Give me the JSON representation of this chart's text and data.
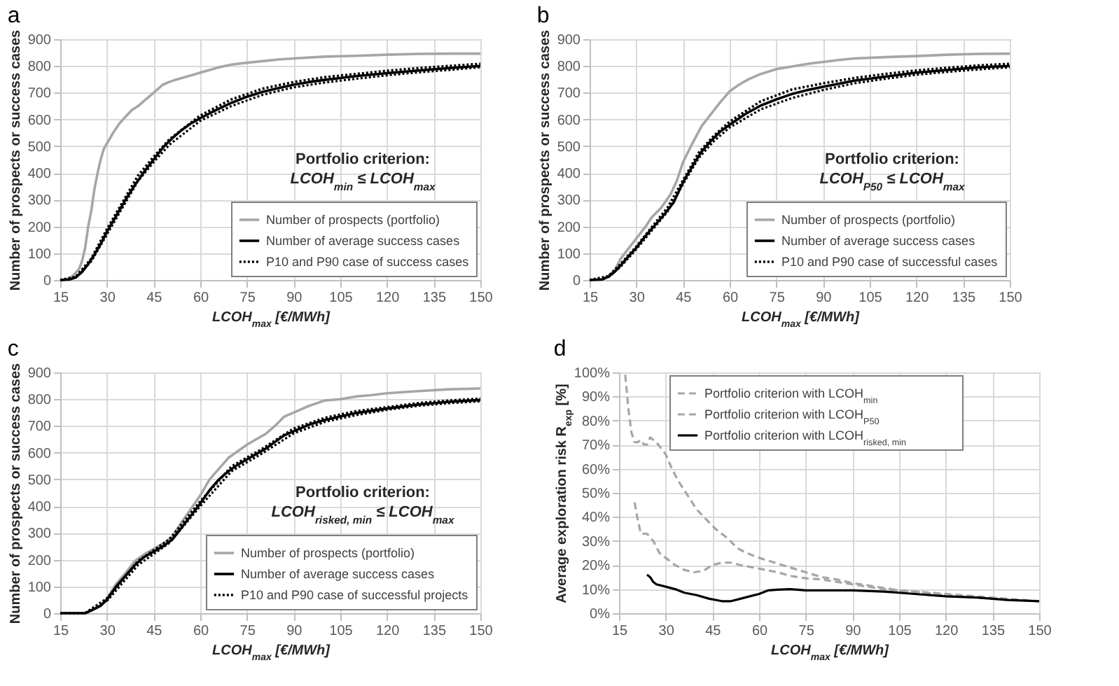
{
  "chart_data": [
    {
      "type": "line",
      "title": "a",
      "xlabel": "LCOH$_{max}$ [€/MWh]",
      "ylabel": "Number of prospects or success cases",
      "annotations": [
        "Portfolio criterion:",
        "LCOH$_{min}$ ≤ LCOH$_{max}$"
      ],
      "xlim": [
        15,
        150
      ],
      "xticks": [
        15,
        30,
        45,
        60,
        75,
        90,
        105,
        120,
        135,
        150
      ],
      "ylim": [
        0,
        900
      ],
      "yticks": [
        0,
        100,
        200,
        300,
        400,
        500,
        600,
        700,
        800,
        900
      ],
      "grid": true,
      "legend": "bottom right",
      "series": [
        {
          "name": "Number of prospects (portfolio)",
          "color": "#a6a6a6",
          "line_style": "solid",
          "x": [
            15,
            17,
            19,
            21,
            22,
            23,
            24,
            25,
            26,
            27,
            28,
            29,
            30,
            32,
            34,
            36,
            38,
            40,
            42,
            44,
            46,
            48,
            50,
            52,
            55,
            58,
            60,
            63,
            66,
            70,
            75,
            80,
            85,
            90,
            100,
            110,
            120,
            130,
            140,
            150
          ],
          "values": [
            0,
            2,
            15,
            40,
            70,
            120,
            200,
            260,
            340,
            400,
            450,
            490,
            510,
            550,
            585,
            610,
            635,
            650,
            670,
            690,
            710,
            730,
            740,
            748,
            758,
            768,
            775,
            785,
            795,
            805,
            812,
            818,
            824,
            828,
            835,
            838,
            842,
            845,
            846,
            846
          ]
        },
        {
          "name": "Number of average success cases",
          "color": "#000000",
          "line_style": "solid",
          "x": [
            15,
            18,
            20,
            22,
            24,
            26,
            28,
            30,
            33,
            36,
            39,
            42,
            45,
            48,
            51,
            54,
            57,
            60,
            65,
            70,
            75,
            80,
            85,
            90,
            95,
            100,
            105,
            110,
            120,
            130,
            140,
            150
          ],
          "values": [
            0,
            2,
            10,
            30,
            60,
            95,
            135,
            180,
            240,
            300,
            355,
            405,
            450,
            495,
            530,
            560,
            585,
            605,
            635,
            662,
            685,
            703,
            717,
            730,
            740,
            748,
            755,
            762,
            773,
            783,
            792,
            800
          ]
        },
        {
          "name": "P10 and P90 case of success cases",
          "color": "#000000",
          "line_style": "dotted",
          "x": [
            15,
            20,
            25,
            30,
            40,
            45,
            50,
            60,
            70,
            80,
            90,
            100,
            110,
            120,
            130,
            140,
            150
          ],
          "values": [
            0,
            12,
            80,
            190,
            390,
            460,
            525,
            615,
            675,
            715,
            740,
            758,
            770,
            782,
            792,
            800,
            808
          ]
        },
        {
          "color": "#000000",
          "line_style": "dotted",
          "x": [
            20,
            25,
            30,
            40,
            45,
            50,
            60,
            70,
            80,
            90,
            100,
            110,
            120,
            130,
            140,
            150
          ],
          "values": [
            8,
            70,
            170,
            370,
            440,
            505,
            595,
            650,
            692,
            720,
            738,
            752,
            765,
            776,
            785,
            795
          ]
        }
      ]
    },
    {
      "type": "line",
      "title": "b",
      "xlabel": "LCOH$_{max}$ [€/MWh]",
      "ylabel": "Number of prospects or success cases",
      "annotations": [
        "Portfolio criterion:",
        "LCOH$_{P50}$ ≤ LCOH$_{max}$"
      ],
      "xlim": [
        15,
        150
      ],
      "xticks": [
        15,
        30,
        45,
        60,
        75,
        90,
        105,
        120,
        135,
        150
      ],
      "ylim": [
        0,
        900
      ],
      "yticks": [
        0,
        100,
        200,
        300,
        400,
        500,
        600,
        700,
        800,
        900
      ],
      "grid": true,
      "legend": "bottom right",
      "series": [
        {
          "name": "Number of prospects (portfolio)",
          "color": "#a6a6a6",
          "line_style": "solid",
          "x": [
            15,
            19,
            21,
            23,
            25,
            27,
            30,
            33,
            35,
            38,
            41,
            43,
            45,
            48,
            51,
            54,
            57,
            60,
            63,
            66,
            70,
            75,
            80,
            85,
            90,
            95,
            100,
            110,
            120,
            130,
            140,
            150
          ],
          "values": [
            0,
            2,
            15,
            35,
            80,
            110,
            155,
            200,
            235,
            270,
            320,
            370,
            440,
            510,
            575,
            620,
            665,
            705,
            730,
            750,
            770,
            788,
            798,
            808,
            815,
            822,
            828,
            833,
            837,
            842,
            845,
            846
          ]
        },
        {
          "name": "Number of average success cases",
          "color": "#000000",
          "line_style": "solid",
          "x": [
            15,
            19,
            21,
            23,
            25,
            28,
            30,
            33,
            36,
            39,
            42,
            45,
            48,
            51,
            54,
            57,
            60,
            65,
            70,
            75,
            80,
            85,
            90,
            95,
            100,
            110,
            120,
            130,
            140,
            150
          ],
          "values": [
            0,
            2,
            12,
            30,
            55,
            95,
            120,
            165,
            205,
            245,
            290,
            365,
            425,
            480,
            520,
            555,
            580,
            620,
            652,
            675,
            695,
            710,
            722,
            733,
            745,
            760,
            775,
            785,
            795,
            800
          ]
        },
        {
          "name": "P10 and P90 case of successful cases",
          "color": "#000000",
          "line_style": "dotted",
          "x": [
            15,
            21,
            25,
            30,
            40,
            45,
            50,
            55,
            60,
            70,
            80,
            90,
            100,
            110,
            120,
            130,
            140,
            150
          ],
          "values": [
            0,
            14,
            60,
            125,
            270,
            372,
            475,
            540,
            592,
            668,
            712,
            735,
            755,
            770,
            783,
            793,
            802,
            808
          ]
        },
        {
          "color": "#000000",
          "line_style": "dotted",
          "x": [
            21,
            25,
            30,
            40,
            45,
            50,
            55,
            60,
            70,
            80,
            90,
            100,
            110,
            120,
            130,
            140,
            150
          ],
          "values": [
            10,
            50,
            115,
            255,
            358,
            455,
            520,
            570,
            638,
            680,
            710,
            735,
            752,
            767,
            778,
            787,
            795
          ]
        }
      ]
    },
    {
      "type": "line",
      "title": "c",
      "xlabel": "LCOH$_{max}$ [€/MWh]",
      "ylabel": "Number of prospects or success cases",
      "annotations": [
        "Portfolio criterion:",
        "LCOH$_{risked, min}$ ≤ LCOH$_{max}$"
      ],
      "xlim": [
        15,
        150
      ],
      "xticks": [
        15,
        30,
        45,
        60,
        75,
        90,
        105,
        120,
        135,
        150
      ],
      "ylim": [
        0,
        900
      ],
      "yticks": [
        0,
        100,
        200,
        300,
        400,
        500,
        600,
        700,
        800,
        900
      ],
      "grid": true,
      "legend": "bottom right",
      "series": [
        {
          "name": "Number of prospects (portfolio)",
          "color": "#a6a6a6",
          "line_style": "solid",
          "x": [
            15,
            23,
            25,
            28,
            30,
            33,
            36,
            39,
            42,
            45,
            48,
            51,
            54,
            57,
            60,
            63,
            66,
            69,
            72,
            75,
            78,
            81,
            84,
            87,
            90,
            95,
            100,
            105,
            110,
            115,
            120,
            130,
            140,
            150
          ],
          "values": [
            0,
            0,
            12,
            30,
            55,
            110,
            150,
            195,
            220,
            240,
            260,
            285,
            340,
            390,
            440,
            500,
            540,
            580,
            605,
            630,
            650,
            670,
            700,
            735,
            750,
            775,
            795,
            800,
            810,
            815,
            822,
            830,
            837,
            840
          ]
        },
        {
          "name": "Number of average success cases",
          "color": "#000000",
          "line_style": "solid",
          "x": [
            15,
            23,
            25,
            28,
            30,
            33,
            36,
            39,
            42,
            45,
            48,
            51,
            54,
            57,
            60,
            63,
            66,
            69,
            72,
            75,
            78,
            81,
            84,
            87,
            90,
            95,
            100,
            105,
            110,
            120,
            130,
            140,
            150
          ],
          "values": [
            0,
            0,
            10,
            28,
            50,
            100,
            140,
            180,
            210,
            230,
            250,
            275,
            320,
            365,
            410,
            460,
            500,
            530,
            555,
            575,
            595,
            615,
            640,
            665,
            680,
            705,
            722,
            735,
            748,
            765,
            780,
            790,
            797
          ]
        },
        {
          "name": "P10 and P90 case of successful projects",
          "color": "#000000",
          "line_style": "dotted",
          "x": [
            15,
            23,
            30,
            40,
            50,
            60,
            70,
            80,
            90,
            100,
            110,
            120,
            130,
            140,
            150
          ],
          "values": [
            0,
            0,
            55,
            195,
            275,
            418,
            548,
            615,
            690,
            730,
            755,
            770,
            785,
            795,
            802
          ]
        },
        {
          "color": "#000000",
          "line_style": "dotted",
          "x": [
            30,
            40,
            50,
            60,
            70,
            80,
            90,
            100,
            110,
            120,
            130,
            140,
            150
          ],
          "values": [
            45,
            180,
            262,
            400,
            530,
            598,
            672,
            715,
            740,
            760,
            775,
            785,
            792
          ]
        }
      ]
    },
    {
      "type": "line",
      "title": "d",
      "xlabel": "LCOH$_{max}$ [€/MWh]",
      "ylabel": "Average exploration risk R$_{exp}$ [%]",
      "xlim": [
        15,
        150
      ],
      "xticks": [
        15,
        30,
        45,
        60,
        75,
        90,
        105,
        120,
        135,
        150
      ],
      "ylim": [
        0,
        100
      ],
      "yticks": [
        {
          "value": 0,
          "label": "0%"
        },
        {
          "value": 10,
          "label": "10%"
        },
        {
          "value": 20,
          "label": "20%"
        },
        {
          "value": 30,
          "label": "30%"
        },
        {
          "value": 40,
          "label": "40%"
        },
        {
          "value": 50,
          "label": "50%"
        },
        {
          "value": 60,
          "label": "60%"
        },
        {
          "value": 70,
          "label": "70%"
        },
        {
          "value": 80,
          "label": "80%"
        },
        {
          "value": 90,
          "label": "90%"
        },
        {
          "value": 100,
          "label": "100%"
        }
      ],
      "grid": true,
      "legend": "top left",
      "series": [
        {
          "name": "Portfolio criterion with LCOH$_{min}$",
          "color": "#a6a6a6",
          "line_style": "dashed",
          "x": [
            17,
            18,
            19,
            20,
            21,
            22,
            23,
            24,
            25,
            27,
            30,
            32,
            34,
            37,
            40,
            43,
            46,
            50,
            53,
            56,
            60,
            65,
            70,
            75,
            80,
            85,
            90,
            95,
            100,
            105,
            110,
            120,
            130,
            140,
            150
          ],
          "values": [
            99,
            85,
            75,
            71,
            71,
            72,
            70,
            70,
            73,
            71,
            66,
            60,
            55,
            49,
            43,
            39,
            35,
            31,
            27,
            25,
            23,
            21,
            19,
            17,
            15,
            14,
            12.5,
            11.5,
            10.5,
            9.5,
            9,
            8,
            7,
            6,
            5
          ]
        },
        {
          "name": "Portfolio criterion with LCOH$_{P50}$",
          "color": "#a6a6a6",
          "line_style": "dashed",
          "x": [
            20,
            21,
            22,
            24,
            26,
            28,
            30,
            33,
            36,
            39,
            42,
            45,
            48,
            51,
            54,
            58,
            62,
            66,
            70,
            75,
            80,
            85,
            90,
            100,
            110,
            120,
            130,
            140,
            150
          ],
          "values": [
            46,
            39,
            33,
            33,
            30,
            25,
            23,
            20,
            18,
            17,
            17.5,
            20,
            21,
            21,
            20,
            19,
            18,
            17,
            15.5,
            14.5,
            14,
            13,
            12,
            10,
            9,
            7.5,
            6.5,
            5.5,
            5
          ]
        },
        {
          "name": "Portfolio criterion with LCOH$_{risked, min}$",
          "color": "#000000",
          "line_style": "solid",
          "x": [
            24,
            25,
            26,
            27,
            30,
            33,
            36,
            40,
            44,
            48,
            51,
            54,
            57,
            60,
            63,
            66,
            70,
            75,
            80,
            90,
            100,
            110,
            120,
            130,
            140,
            150
          ],
          "values": [
            16,
            15,
            13,
            12,
            11,
            10,
            8.5,
            7.5,
            6,
            5,
            5,
            6,
            7,
            8,
            9.5,
            9.8,
            10,
            9.5,
            9.5,
            9.5,
            9,
            8,
            7,
            6.5,
            5.5,
            5
          ]
        }
      ]
    }
  ]
}
